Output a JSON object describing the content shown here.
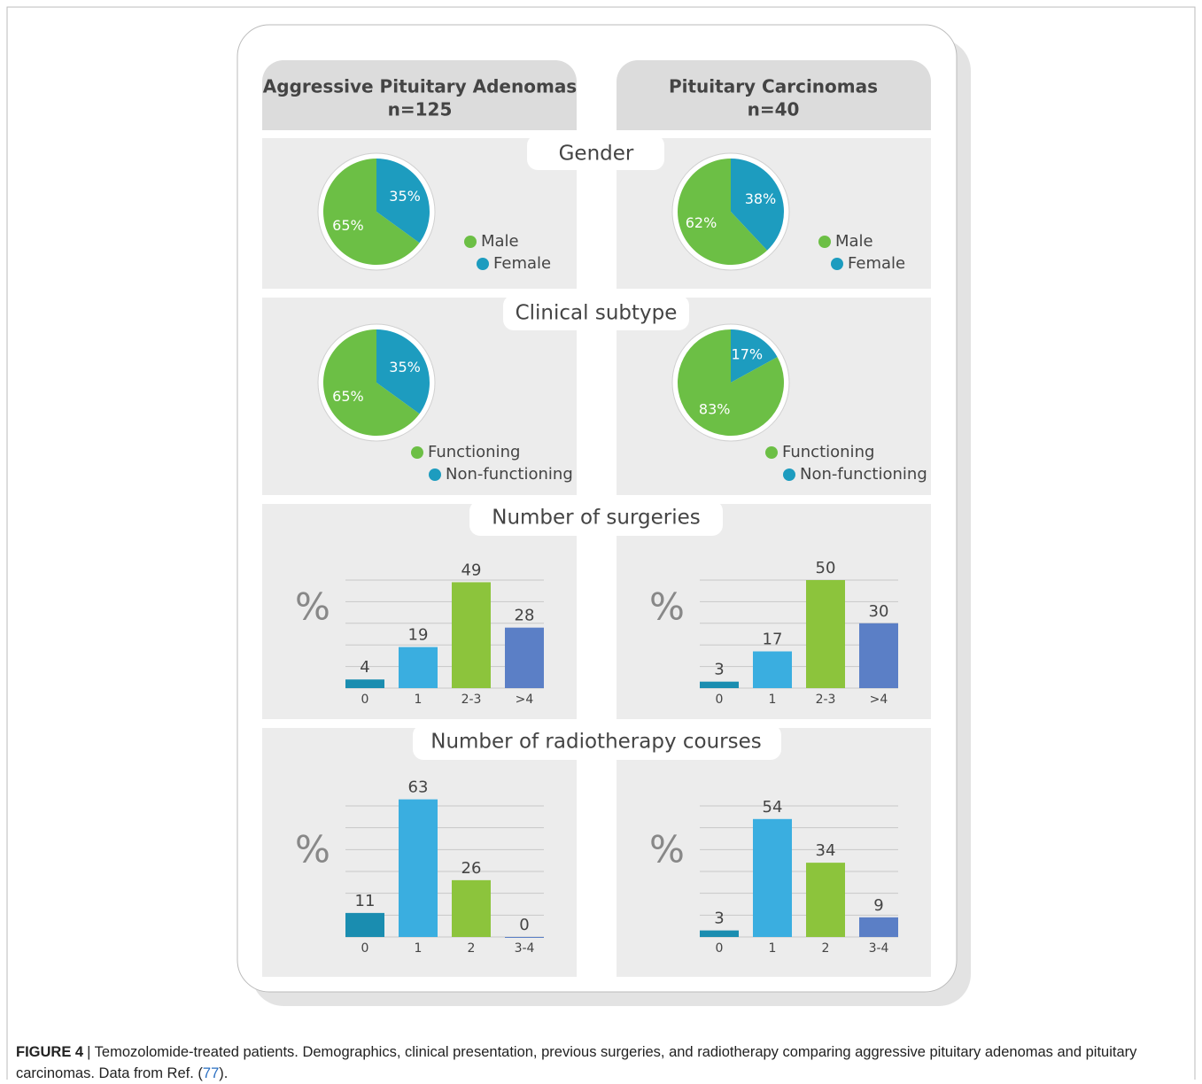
{
  "columns": [
    {
      "title": "Aggressive Pituitary Adenomas",
      "n": "n=125"
    },
    {
      "title": "Pituitary Carcinomas",
      "n": "n=40"
    }
  ],
  "sections": [
    "Gender",
    "Clinical subtype",
    "Number of surgeries",
    "Number of radiotherapy courses"
  ],
  "caption": {
    "label": "FIGURE 4",
    "text": "| Temozolomide-treated patients. Demographics, clinical presentation, previous surgeries, and radiotherapy comparing aggressive pituitary adenomas and pituitary carcinomas. Data from Ref. (",
    "ref": "77",
    "end": ")."
  },
  "chart_data": [
    {
      "type": "pie",
      "categories": [
        "Male",
        "Female"
      ],
      "values": [
        65,
        35
      ],
      "value_labels": [
        "65%",
        "35%"
      ],
      "colors": [
        "#6cbf45",
        "#1d9cbf"
      ]
    },
    {
      "type": "pie",
      "categories": [
        "Male",
        "Female"
      ],
      "values": [
        62,
        38
      ],
      "value_labels": [
        "62%",
        "38%"
      ],
      "colors": [
        "#6cbf45",
        "#1d9cbf"
      ]
    },
    {
      "type": "pie",
      "categories": [
        "Functioning",
        "Non-functioning"
      ],
      "values": [
        65,
        35
      ],
      "value_labels": [
        "65%",
        "35%"
      ],
      "colors": [
        "#6cbf45",
        "#1d9cbf"
      ]
    },
    {
      "type": "pie",
      "categories": [
        "Functioning",
        "Non-functioning"
      ],
      "values": [
        83,
        17
      ],
      "value_labels": [
        "83%",
        "17%"
      ],
      "colors": [
        "#6cbf45",
        "#1d9cbf"
      ]
    },
    {
      "type": "bar",
      "ylabel": "%",
      "categories": [
        "0",
        "1",
        "2-3",
        ">4"
      ],
      "values": [
        4,
        19,
        49,
        28
      ],
      "colors": [
        "#1a8db0",
        "#3aaee0",
        "#8cc43c",
        "#5b7fc6"
      ],
      "ylim": [
        0,
        50
      ],
      "yticks": [
        0,
        10,
        20,
        30,
        40,
        50
      ],
      "grid": true
    },
    {
      "type": "bar",
      "ylabel": "%",
      "categories": [
        "0",
        "1",
        "2-3",
        ">4"
      ],
      "values": [
        3,
        17,
        50,
        30
      ],
      "colors": [
        "#1a8db0",
        "#3aaee0",
        "#8cc43c",
        "#5b7fc6"
      ],
      "ylim": [
        0,
        50
      ],
      "yticks": [
        0,
        10,
        20,
        30,
        40,
        50
      ],
      "grid": true
    },
    {
      "type": "bar",
      "ylabel": "%",
      "categories": [
        "0",
        "1",
        "2",
        "3-4"
      ],
      "values": [
        11,
        63,
        26,
        0
      ],
      "colors": [
        "#1a8db0",
        "#3aaee0",
        "#8cc43c",
        "#5b7fc6"
      ],
      "ylim": [
        0,
        60
      ],
      "yticks": [
        0,
        10,
        20,
        30,
        40,
        50,
        60
      ],
      "grid": true
    },
    {
      "type": "bar",
      "ylabel": "%",
      "categories": [
        "0",
        "1",
        "2",
        "3-4"
      ],
      "values": [
        3,
        54,
        34,
        9
      ],
      "colors": [
        "#1a8db0",
        "#3aaee0",
        "#8cc43c",
        "#5b7fc6"
      ],
      "ylim": [
        0,
        60
      ],
      "yticks": [
        0,
        10,
        20,
        30,
        40,
        50,
        60
      ],
      "grid": true
    }
  ]
}
